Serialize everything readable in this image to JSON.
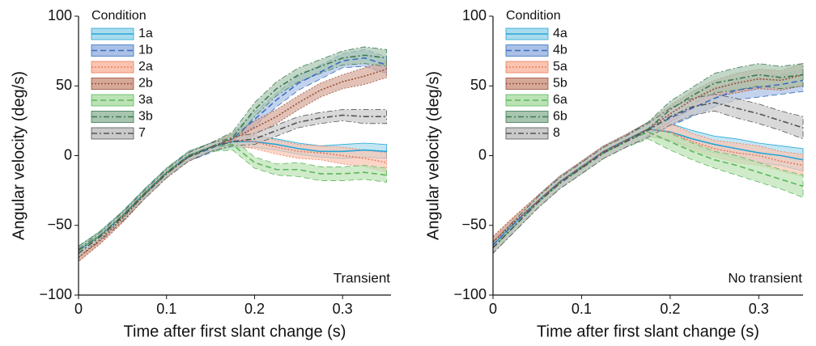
{
  "chart_data": [
    {
      "type": "line",
      "annotation": "Transient",
      "legend_title": "Condition",
      "legend": "upper left",
      "xlabel": "Time after first slant change (s)",
      "ylabel": "Angular velocity (deg/s)",
      "xlim": [
        0,
        0.355
      ],
      "ylim": [
        -100,
        100
      ],
      "xticks": [
        0,
        0.1,
        0.2,
        0.3
      ],
      "yticks": [
        {
          "value": -100,
          "label": "−100"
        },
        {
          "value": -50,
          "label": "−50"
        },
        0,
        50,
        100
      ],
      "x": [
        0,
        0.025,
        0.05,
        0.075,
        0.1,
        0.125,
        0.15,
        0.175,
        0.2,
        0.225,
        0.25,
        0.275,
        0.3,
        0.325,
        0.35
      ],
      "series": [
        {
          "name": "1a",
          "color": "#27a6d6",
          "fill": "#a9dcef",
          "dash": "solid",
          "values": [
            -68,
            -57,
            -43,
            -27,
            -12,
            0,
            6,
            10,
            10,
            8,
            5,
            3,
            3,
            4,
            3
          ],
          "error": [
            3,
            3,
            3,
            3,
            3,
            3,
            3,
            4,
            4,
            4,
            4,
            4,
            5,
            5,
            5
          ]
        },
        {
          "name": "1b",
          "color": "#3a6fbf",
          "fill": "#aac0e6",
          "dash": "dashed",
          "values": [
            -68,
            -57,
            -43,
            -27,
            -12,
            -1,
            5,
            12,
            26,
            40,
            52,
            60,
            68,
            70,
            65
          ],
          "error": [
            3,
            3,
            3,
            3,
            3,
            3,
            3,
            4,
            5,
            5,
            5,
            5,
            5,
            6,
            6
          ]
        },
        {
          "name": "2a",
          "color": "#ee7c5c",
          "fill": "#f9c4b1",
          "dash": "dotted",
          "values": [
            -73,
            -60,
            -45,
            -28,
            -13,
            -1,
            6,
            11,
            10,
            6,
            3,
            2,
            0,
            -2,
            -5
          ],
          "error": [
            3,
            3,
            3,
            3,
            3,
            3,
            3,
            4,
            5,
            5,
            5,
            5,
            6,
            6,
            7
          ]
        },
        {
          "name": "2b",
          "color": "#9c4f3b",
          "fill": "#d6a898",
          "dash": "dotted",
          "values": [
            -73,
            -60,
            -45,
            -28,
            -13,
            -1,
            6,
            12,
            20,
            28,
            38,
            47,
            53,
            57,
            62
          ],
          "error": [
            3,
            3,
            3,
            3,
            3,
            3,
            3,
            4,
            5,
            5,
            5,
            5,
            5,
            6,
            6
          ]
        },
        {
          "name": "3a",
          "color": "#5cb85c",
          "fill": "#bbe2b4",
          "dash": "dashed",
          "values": [
            -68,
            -57,
            -43,
            -27,
            -12,
            0,
            6,
            8,
            -5,
            -10,
            -10,
            -13,
            -13,
            -12,
            -14
          ],
          "error": [
            3,
            3,
            3,
            3,
            3,
            3,
            3,
            4,
            4,
            4,
            5,
            5,
            5,
            5,
            5
          ]
        },
        {
          "name": "3b",
          "color": "#3c7a52",
          "fill": "#a8c6af",
          "dash": "dashdot",
          "values": [
            -68,
            -57,
            -43,
            -27,
            -12,
            0,
            6,
            13,
            33,
            48,
            58,
            64,
            70,
            72,
            70
          ],
          "error": [
            3,
            3,
            3,
            3,
            3,
            3,
            3,
            4,
            5,
            5,
            5,
            5,
            5,
            6,
            6
          ]
        },
        {
          "name": "7",
          "color": "#555555",
          "fill": "#c9c9c9",
          "dash": "dashdot",
          "values": [
            -70,
            -58,
            -44,
            -28,
            -13,
            -1,
            6,
            10,
            12,
            18,
            24,
            27,
            29,
            28,
            28
          ],
          "error": [
            3,
            3,
            3,
            3,
            3,
            3,
            3,
            3,
            4,
            4,
            4,
            4,
            4,
            5,
            5
          ]
        }
      ]
    },
    {
      "type": "line",
      "annotation": "No transient",
      "legend_title": "Condition",
      "legend": "upper left",
      "xlabel": "Time after first slant change (s)",
      "ylabel": "Angular velocity (deg/s)",
      "xlim": [
        0,
        0.35
      ],
      "ylim": [
        -100,
        100
      ],
      "xticks": [
        0,
        0.1,
        0.2,
        0.3
      ],
      "yticks": [
        {
          "value": -100,
          "label": "−100"
        },
        {
          "value": -50,
          "label": "−50"
        },
        0,
        50,
        100
      ],
      "x": [
        0,
        0.025,
        0.05,
        0.075,
        0.1,
        0.125,
        0.15,
        0.175,
        0.2,
        0.225,
        0.25,
        0.275,
        0.3,
        0.325,
        0.35
      ],
      "series": [
        {
          "name": "4a",
          "color": "#27a6d6",
          "fill": "#a9dcef",
          "dash": "solid",
          "values": [
            -64,
            -48,
            -33,
            -19,
            -8,
            3,
            11,
            19,
            17,
            12,
            8,
            5,
            2,
            0,
            -3
          ],
          "error": [
            4,
            4,
            4,
            4,
            4,
            4,
            4,
            5,
            6,
            6,
            6,
            7,
            7,
            7,
            8
          ]
        },
        {
          "name": "4b",
          "color": "#3a6fbf",
          "fill": "#aac0e6",
          "dash": "dashed",
          "values": [
            -64,
            -48,
            -33,
            -19,
            -8,
            3,
            11,
            19,
            27,
            34,
            41,
            47,
            49,
            51,
            54
          ],
          "error": [
            4,
            4,
            4,
            4,
            4,
            4,
            4,
            5,
            6,
            6,
            6,
            7,
            7,
            7,
            8
          ]
        },
        {
          "name": "5a",
          "color": "#ee7c5c",
          "fill": "#f9c4b1",
          "dash": "dotted",
          "values": [
            -62,
            -47,
            -33,
            -19,
            -8,
            3,
            11,
            19,
            17,
            10,
            5,
            2,
            0,
            -4,
            -7
          ],
          "error": [
            4,
            4,
            4,
            4,
            4,
            4,
            4,
            5,
            6,
            6,
            6,
            7,
            7,
            7,
            8
          ]
        },
        {
          "name": "5b",
          "color": "#9c4f3b",
          "fill": "#d6a898",
          "dash": "dotted",
          "values": [
            -62,
            -47,
            -33,
            -19,
            -8,
            3,
            11,
            19,
            30,
            40,
            48,
            52,
            55,
            54,
            58
          ],
          "error": [
            4,
            4,
            4,
            4,
            4,
            4,
            4,
            5,
            6,
            6,
            6,
            7,
            7,
            7,
            8
          ]
        },
        {
          "name": "6a",
          "color": "#5cb85c",
          "fill": "#bbe2b4",
          "dash": "dashed",
          "values": [
            -66,
            -50,
            -34,
            -20,
            -9,
            2,
            10,
            17,
            10,
            3,
            -3,
            -7,
            -12,
            -17,
            -22
          ],
          "error": [
            4,
            4,
            4,
            4,
            4,
            4,
            4,
            5,
            6,
            6,
            6,
            7,
            7,
            7,
            8
          ]
        },
        {
          "name": "6b",
          "color": "#3c7a52",
          "fill": "#a8c6af",
          "dash": "dashdot",
          "values": [
            -66,
            -50,
            -34,
            -20,
            -9,
            2,
            10,
            19,
            33,
            43,
            52,
            55,
            58,
            56,
            58
          ],
          "error": [
            4,
            4,
            4,
            4,
            4,
            4,
            4,
            5,
            6,
            6,
            7,
            8,
            8,
            8,
            8
          ]
        },
        {
          "name": "8",
          "color": "#555555",
          "fill": "#c9c9c9",
          "dash": "dashdot",
          "values": [
            -66,
            -50,
            -34,
            -20,
            -9,
            2,
            10,
            18,
            28,
            35,
            38,
            34,
            30,
            25,
            20
          ],
          "error": [
            4,
            4,
            4,
            4,
            4,
            4,
            4,
            5,
            6,
            6,
            6,
            7,
            7,
            7,
            8
          ]
        }
      ]
    }
  ]
}
